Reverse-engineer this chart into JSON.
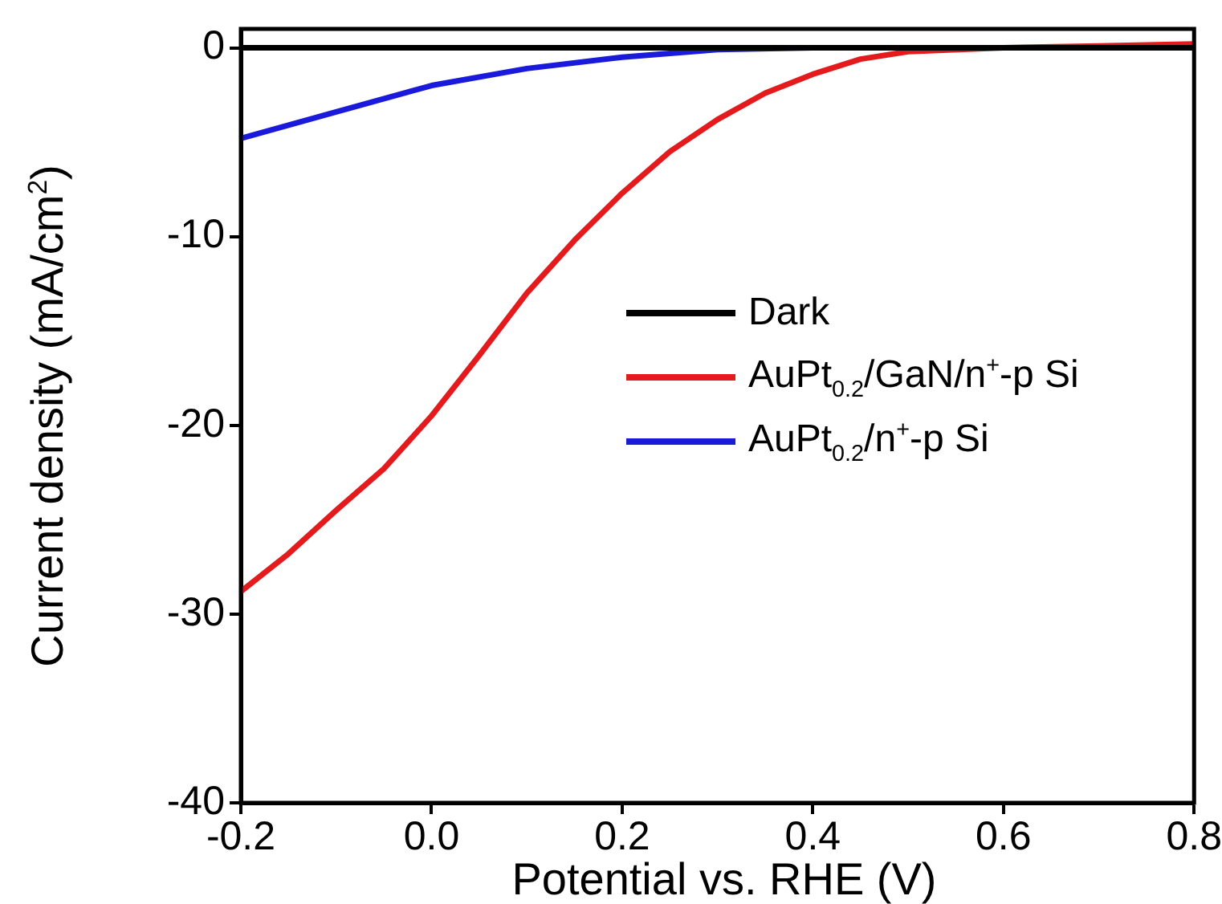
{
  "chart_data": {
    "type": "line",
    "xlabel": "Potential vs. RHE (V)",
    "ylabel": "Current density (mA/cm$^{2}$)",
    "xlim": [
      -0.2,
      0.8
    ],
    "xticks": [
      {
        "value": -0.2,
        "label": "-0.2"
      },
      {
        "value": 0,
        "label": "0.0"
      },
      {
        "value": 0.2,
        "label": "0.2"
      },
      {
        "value": 0.4,
        "label": "0.4"
      },
      {
        "value": 0.6,
        "label": "0.6"
      },
      {
        "value": 0.8,
        "label": "0.8"
      }
    ],
    "ylim": [
      -40,
      1
    ],
    "yticks": [
      -40,
      -30,
      -20,
      -10,
      0
    ],
    "legend": "right",
    "marker": "none",
    "line_style": "solid",
    "grid": false,
    "series": [
      {
        "name": "Dark",
        "color": "#000000",
        "x": [
          -0.2,
          0.0,
          0.2,
          0.4,
          0.6,
          0.8
        ],
        "values": [
          0,
          0,
          0,
          0,
          0,
          0
        ]
      },
      {
        "name": "AuPt$_{0.2}$/GaN/n$^{+}$-p Si",
        "color": "#e41a1c",
        "x": [
          -0.2,
          -0.15,
          -0.1,
          -0.05,
          0.0,
          0.05,
          0.1,
          0.15,
          0.2,
          0.25,
          0.3,
          0.35,
          0.4,
          0.45,
          0.5,
          0.6,
          0.7,
          0.8
        ],
        "values": [
          -28.8,
          -26.8,
          -24.5,
          -22.3,
          -19.5,
          -16.3,
          -13.0,
          -10.2,
          -7.7,
          -5.5,
          -3.8,
          -2.4,
          -1.4,
          -0.6,
          -0.2,
          0.0,
          0.1,
          0.2
        ]
      },
      {
        "name": "AuPt$_{0.2}$/n$^{+}$-p Si",
        "color": "#1a1adc",
        "x": [
          -0.2,
          -0.1,
          0.0,
          0.1,
          0.2,
          0.3,
          0.4,
          0.6,
          0.8
        ],
        "values": [
          -4.8,
          -3.4,
          -2.0,
          -1.1,
          -0.5,
          -0.1,
          0,
          0,
          0
        ]
      }
    ]
  }
}
